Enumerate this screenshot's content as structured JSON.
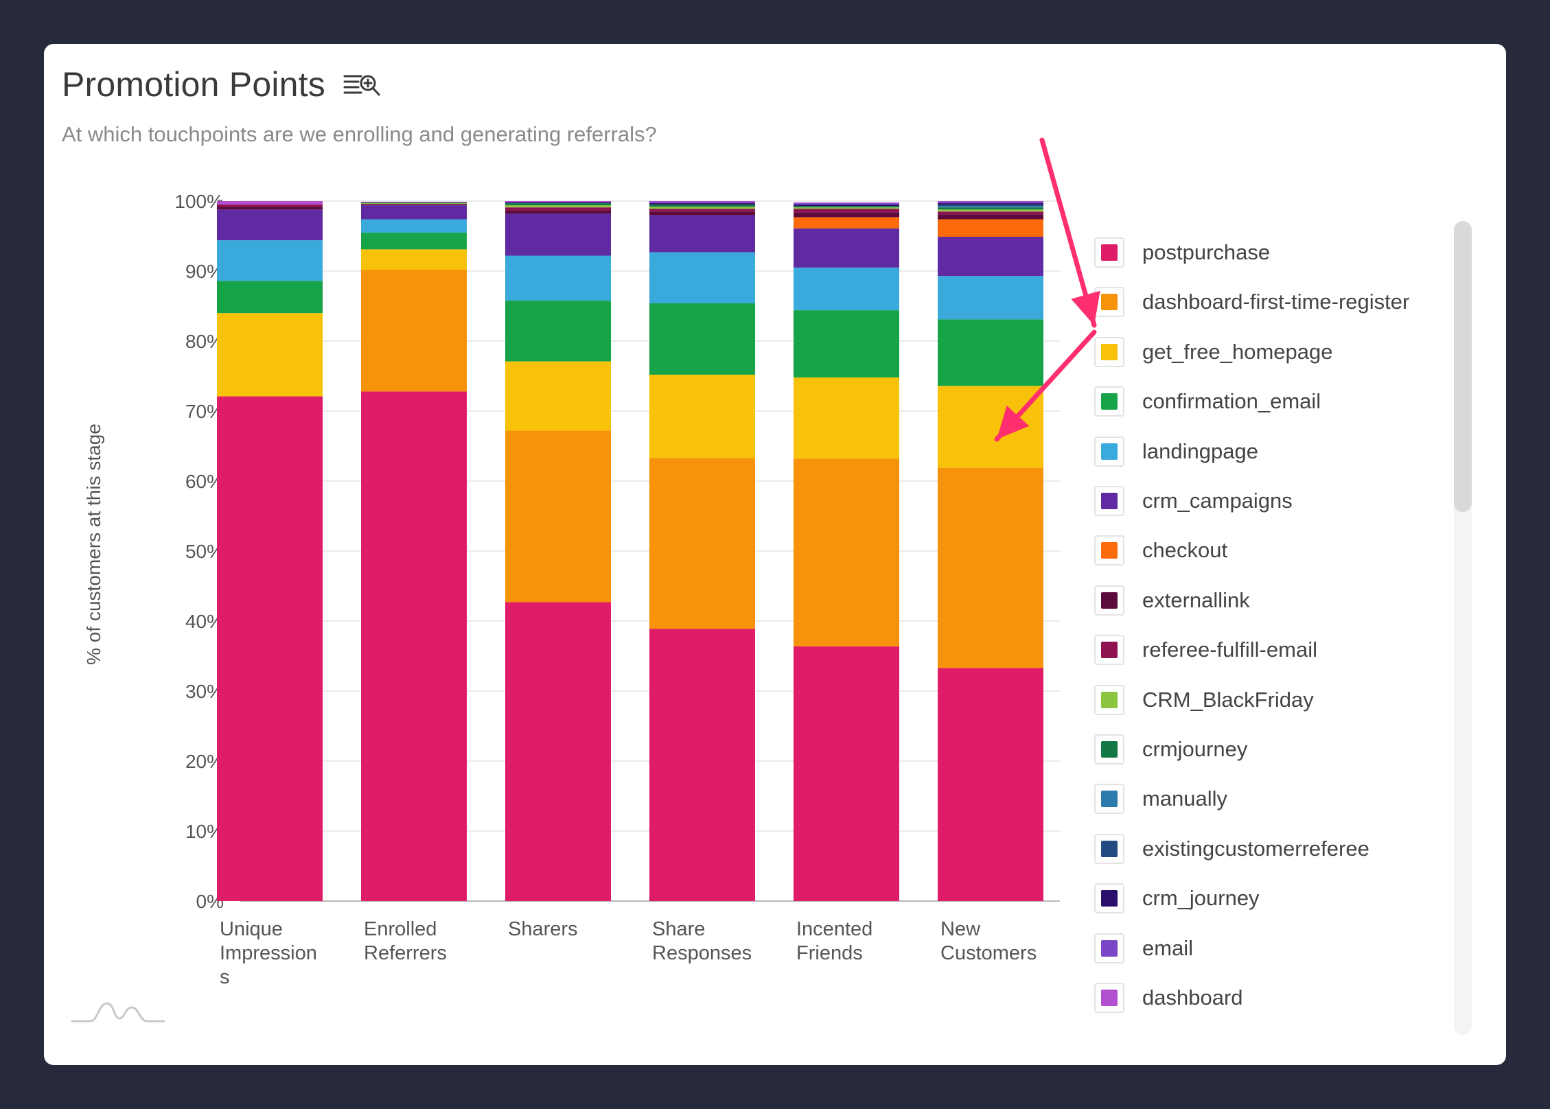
{
  "title": "Promotion Points",
  "subtitle": "At which touchpoints are we enrolling and generating referrals?",
  "icons": {
    "title_icon": "zoom-list-icon",
    "logo": "brand-logo-icon"
  },
  "chart_data": {
    "type": "bar",
    "stacked": true,
    "ylabel": "% of customers at this stage",
    "ylim": [
      0,
      100
    ],
    "yticks": [
      "0%",
      "10%",
      "20%",
      "30%",
      "40%",
      "50%",
      "60%",
      "70%",
      "80%",
      "90%",
      "100%"
    ],
    "grid": true,
    "legend_position": "right",
    "categories": [
      [
        "Unique",
        "Impression",
        "s"
      ],
      [
        "Enrolled",
        "Referrers"
      ],
      [
        "Sharers"
      ],
      [
        "Share",
        "Responses"
      ],
      [
        "Incented",
        "Friends"
      ],
      [
        "New",
        "Customers"
      ]
    ],
    "series": [
      {
        "name": "postpurchase",
        "color": "#df1c68",
        "values": [
          72.1,
          72.8,
          42.7,
          38.9,
          36.4,
          33.3
        ]
      },
      {
        "name": "dashboard-first-time-register",
        "color": "#f7930a",
        "values": [
          0,
          17.4,
          24.5,
          24.4,
          26.8,
          28.6
        ]
      },
      {
        "name": "get_free_homepage",
        "color": "#f8c20a",
        "values": [
          11.9,
          2.9,
          9.9,
          11.9,
          11.6,
          11.7
        ]
      },
      {
        "name": "confirmation_email",
        "color": "#17a347",
        "values": [
          4.6,
          2.4,
          8.7,
          10.2,
          9.6,
          9.5
        ]
      },
      {
        "name": "landingpage",
        "color": "#3aa9db",
        "values": [
          5.8,
          1.9,
          6.4,
          7.3,
          6.1,
          6.2
        ]
      },
      {
        "name": "crm_campaigns",
        "color": "#5f2aa2",
        "values": [
          4.4,
          2.0,
          6.0,
          5.3,
          5.6,
          5.6
        ]
      },
      {
        "name": "checkout",
        "color": "#fb6a0b",
        "values": [
          0,
          0,
          0,
          0,
          1.6,
          2.5
        ]
      },
      {
        "name": "externallink",
        "color": "#5b0a3b",
        "values": [
          0.4,
          0.1,
          0.5,
          0.5,
          0.7,
          0.7
        ]
      },
      {
        "name": "referee-fulfill-email",
        "color": "#8e1150",
        "values": [
          0.3,
          0.1,
          0.4,
          0.4,
          0.5,
          0.4
        ]
      },
      {
        "name": "CRM_BlackFriday",
        "color": "#8bc43f",
        "values": [
          0,
          0.1,
          0.3,
          0.3,
          0.2,
          0.3
        ]
      },
      {
        "name": "crmjourney",
        "color": "#137845",
        "values": [
          0,
          0.1,
          0.3,
          0.3,
          0.2,
          0.3
        ]
      },
      {
        "name": "manually",
        "color": "#2d7bad",
        "values": [
          0,
          0,
          0,
          0,
          0,
          0.2
        ]
      },
      {
        "name": "existingcustomerreferee",
        "color": "#244a82",
        "values": [
          0,
          0,
          0,
          0,
          0,
          0.2
        ]
      },
      {
        "name": "crm_journey",
        "color": "#2a0f6b",
        "values": [
          0,
          0,
          0.1,
          0.2,
          0.2,
          0.2
        ]
      },
      {
        "name": "email",
        "color": "#7b47c9",
        "values": [
          0,
          0,
          0.1,
          0.2,
          0.2,
          0.2
        ]
      },
      {
        "name": "dashboard",
        "color": "#b04fd0",
        "values": [
          0.5,
          0.1,
          0.1,
          0.1,
          0.1,
          0.1
        ]
      }
    ]
  },
  "annotation_color": "#ff2e6e"
}
